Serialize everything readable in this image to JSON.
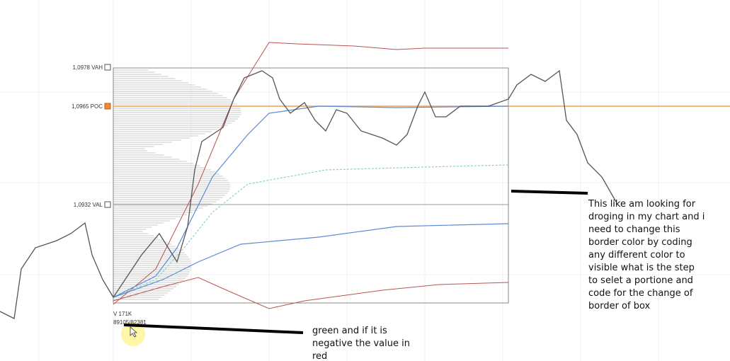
{
  "levels": {
    "vah": "1,0978 VAH",
    "poc": "1,0965 POC",
    "val": "1,0932 VAL"
  },
  "stats": {
    "volume": "V 171K",
    "delta": "89105/82381"
  },
  "notes": {
    "right": [
      "This like am looking for",
      "droging in my chart and i",
      "need to change this",
      "border color by coding",
      "any different color to",
      "visible what is the step",
      "to selet a portione and",
      "code for the change of",
      "border of box"
    ],
    "bottom": [
      "green and if it is",
      "negative the value in",
      "red"
    ]
  }
}
